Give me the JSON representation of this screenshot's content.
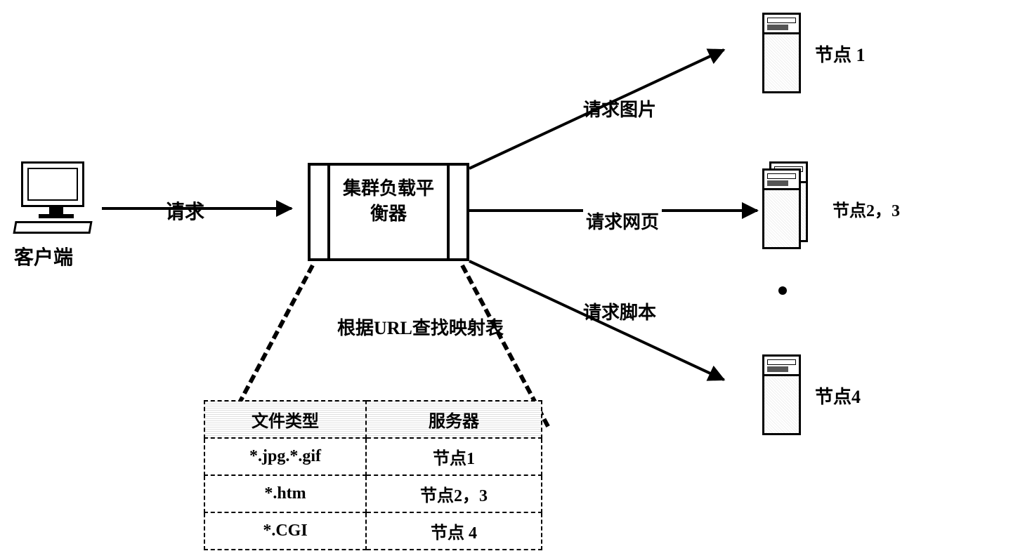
{
  "client_label": "客户端",
  "request_label": "请求",
  "balancer_text": "集群负载平衡器",
  "route_img": "请求图片",
  "route_web": "请求网页",
  "route_script": "请求脚本",
  "node1": "节点 1",
  "node23": "节点2，3",
  "node4": "节点4",
  "url_lookup": "根据URL查找映射表",
  "table": {
    "header_type": "文件类型",
    "header_server": "服务器",
    "rows": [
      {
        "type": "*.jpg.*.gif",
        "server": "节点1"
      },
      {
        "type": "*.htm",
        "server": "节点2，3"
      },
      {
        "type": "*.CGI",
        "server": "节点 4"
      }
    ]
  },
  "colors": {
    "line": "#000000",
    "bg": "#ffffff"
  }
}
